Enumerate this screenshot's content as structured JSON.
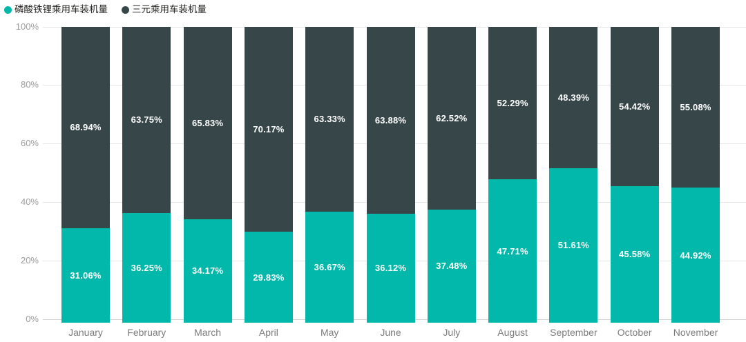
{
  "chart_data": {
    "type": "bar",
    "variant": "100-percent-stacked-column",
    "title": "",
    "xlabel": "",
    "ylabel": "",
    "categories": [
      "January",
      "February",
      "March",
      "April",
      "May",
      "June",
      "July",
      "August",
      "September",
      "October",
      "November"
    ],
    "series": [
      {
        "name": "磷酸铁锂乘用车装机量",
        "color": "#01B8AA",
        "stack_position": "bottom",
        "values": [
          31.06,
          36.25,
          34.17,
          29.83,
          36.67,
          36.12,
          37.48,
          47.71,
          51.61,
          45.58,
          44.92
        ]
      },
      {
        "name": "三元乘用车装机量",
        "color": "#374649",
        "stack_position": "top",
        "values": [
          68.94,
          63.75,
          65.83,
          70.17,
          63.33,
          63.88,
          62.52,
          52.29,
          48.39,
          54.42,
          55.08
        ]
      }
    ],
    "data_label_format": "0.00%",
    "data_label_color": "#FFFFFF",
    "ylim": [
      0,
      100
    ],
    "ytick_labels": [
      "0%",
      "20%",
      "40%",
      "60%",
      "80%",
      "100%"
    ],
    "grid": true,
    "legend_position": "top-left"
  },
  "colors": {
    "background": "#FFFFFF",
    "gridline": "#E6E6E6",
    "zero_axis_line": "#D2D2D2",
    "y_tick_text": "#9B9B9B",
    "x_tick_text": "#7B7B7B",
    "legend_text": "#252423"
  }
}
